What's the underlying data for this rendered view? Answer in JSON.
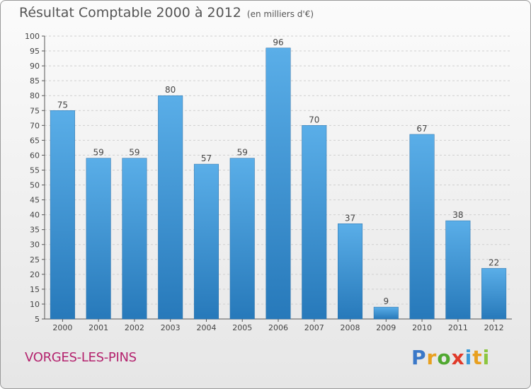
{
  "chart_data": {
    "type": "bar",
    "title": "Résultat Comptable 2000 à 2012",
    "subtitle": "(en milliers d'€)",
    "categories": [
      "2000",
      "2001",
      "2002",
      "2003",
      "2004",
      "2005",
      "2006",
      "2007",
      "2008",
      "2009",
      "2010",
      "2011",
      "2012"
    ],
    "values": [
      75,
      59,
      59,
      80,
      57,
      59,
      96,
      70,
      37,
      9,
      67,
      38,
      22
    ],
    "xlabel": "",
    "ylabel": "",
    "ylim": [
      5,
      100
    ],
    "yticks": [
      5,
      10,
      15,
      20,
      25,
      30,
      35,
      40,
      45,
      50,
      55,
      60,
      65,
      70,
      75,
      80,
      85,
      90,
      95,
      100
    ],
    "grid": true,
    "bar_color_top": "#5aaee8",
    "bar_color_bottom": "#2779ba"
  },
  "commune": "VORGES-LES-PINS",
  "logo": {
    "letters": [
      "P",
      "r",
      "o",
      "x",
      "i",
      "t",
      "i"
    ],
    "colors": [
      "#3a78c8",
      "#e8a020",
      "#50a830",
      "#e03a2a",
      "#3a9ad8",
      "#e8a020",
      "#8cc63f"
    ]
  }
}
